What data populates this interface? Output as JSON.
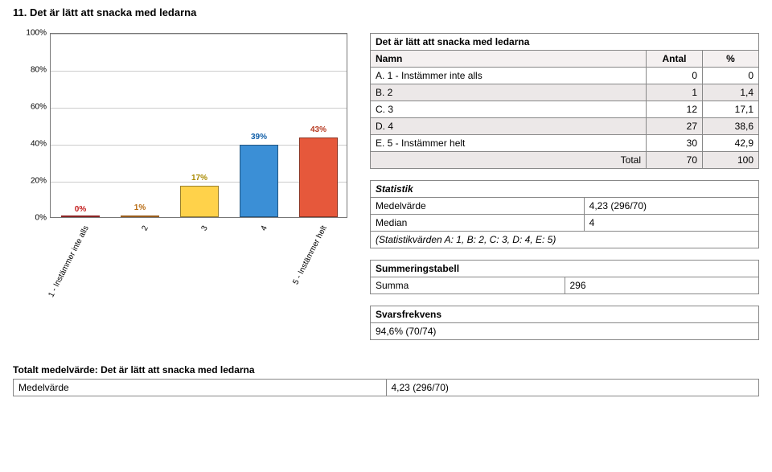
{
  "heading": "11. Det är lätt att snacka med ledarna",
  "chart": {
    "type": "bar",
    "y_ticks": [
      0,
      20,
      40,
      60,
      80,
      100
    ],
    "y_tick_labels": [
      "0%",
      "20%",
      "40%",
      "60%",
      "80%",
      "100%"
    ],
    "x_labels": [
      "1 - Instämmer inte alls",
      "2",
      "3",
      "4",
      "5 - Instämmer helt"
    ],
    "x_short": [
      "1",
      "2",
      "3",
      "4",
      "5"
    ],
    "values_pct": [
      0,
      1,
      17,
      39,
      43
    ],
    "value_labels": [
      "0%",
      "1%",
      "17%",
      "39%",
      "43%"
    ],
    "bar_colors": [
      "#e83d3d",
      "#ff9b2f",
      "#ffd24a",
      "#3b8fd6",
      "#e6583b"
    ],
    "label_colors": [
      "#c41e1e",
      "#b86b11",
      "#a98a00",
      "#0f5ea8",
      "#b73a21"
    ],
    "grid_color": "#cccccc",
    "axis_font_size": 10
  },
  "freq_table": {
    "title": "Det är lätt att snacka med ledarna",
    "headers": [
      "Namn",
      "Antal",
      "%"
    ],
    "rows": [
      {
        "name": "A. 1 - Instämmer inte alls",
        "count": "0",
        "pct": "0"
      },
      {
        "name": "B. 2",
        "count": "1",
        "pct": "1,4"
      },
      {
        "name": "C. 3",
        "count": "12",
        "pct": "17,1"
      },
      {
        "name": "D. 4",
        "count": "27",
        "pct": "38,6"
      },
      {
        "name": "E. 5 - Instämmer helt",
        "count": "30",
        "pct": "42,9"
      }
    ],
    "total_label": "Total",
    "total_count": "70",
    "total_pct": "100"
  },
  "stats": {
    "title": "Statistik",
    "rows": [
      {
        "label": "Medelvärde",
        "value": "4,23 (296/70)"
      },
      {
        "label": "Median",
        "value": "4"
      }
    ],
    "footer": "(Statistikvärden A: 1, B: 2, C: 3, D: 4, E: 5)"
  },
  "sum_table": {
    "title": "Summeringstabell",
    "row_label": "Summa",
    "row_value": "296"
  },
  "response": {
    "title": "Svarsfrekvens",
    "value": "94,6% (70/74)"
  },
  "total_mv": {
    "title": "Totalt medelvärde: Det är lätt att snacka med ledarna",
    "label": "Medelvärde",
    "value": "4,23 (296/70)"
  }
}
